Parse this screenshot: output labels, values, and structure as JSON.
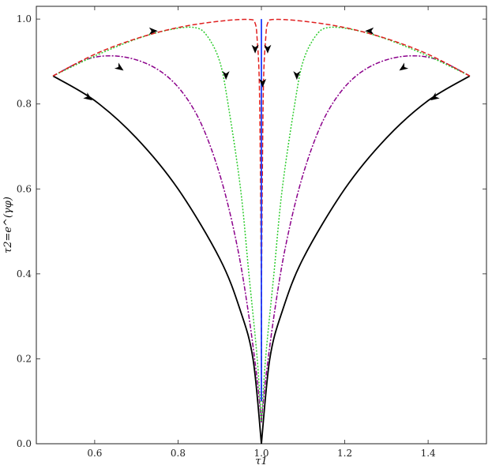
{
  "chart_data": {
    "type": "line",
    "title": "",
    "xlabel": "τ1",
    "ylabel": "τ2=e^(γφ)",
    "xlim": [
      0.46,
      1.54
    ],
    "ylim": [
      0.0,
      1.03
    ],
    "xticks": [
      0.6,
      0.8,
      1.0,
      1.2,
      1.4
    ],
    "yticks": [
      0.0,
      0.2,
      0.4,
      0.6,
      0.8,
      1.0
    ],
    "grid": false,
    "legend": "none",
    "series": [
      {
        "color": "#000000",
        "dash": "solid",
        "points": [
          [
            0.5,
            0.866
          ],
          [
            0.6,
            0.808
          ],
          [
            0.7,
            0.72
          ],
          [
            0.8,
            0.6
          ],
          [
            0.9,
            0.436
          ],
          [
            0.95,
            0.312
          ],
          [
            0.98,
            0.199
          ],
          [
            1.0,
            0.0
          ]
        ]
      },
      {
        "color": "#000000",
        "dash": "solid",
        "points": [
          [
            1.5,
            0.866
          ],
          [
            1.4,
            0.808
          ],
          [
            1.3,
            0.72
          ],
          [
            1.2,
            0.6
          ],
          [
            1.1,
            0.436
          ],
          [
            1.05,
            0.312
          ],
          [
            1.02,
            0.199
          ],
          [
            1.0,
            0.0
          ]
        ]
      },
      {
        "color": "#8b008b",
        "dash": "dashdot",
        "points": [
          [
            0.5,
            0.866
          ],
          [
            0.58,
            0.905
          ],
          [
            0.65,
            0.913
          ],
          [
            0.72,
            0.897
          ],
          [
            0.78,
            0.86
          ],
          [
            0.83,
            0.8
          ],
          [
            0.87,
            0.72
          ],
          [
            0.91,
            0.6
          ],
          [
            0.945,
            0.45
          ],
          [
            0.97,
            0.3
          ],
          [
            0.99,
            0.15
          ],
          [
            1.0,
            0.05
          ]
        ]
      },
      {
        "color": "#8b008b",
        "dash": "dashdot",
        "points": [
          [
            1.5,
            0.866
          ],
          [
            1.42,
            0.905
          ],
          [
            1.35,
            0.913
          ],
          [
            1.28,
            0.897
          ],
          [
            1.22,
            0.86
          ],
          [
            1.17,
            0.8
          ],
          [
            1.13,
            0.72
          ],
          [
            1.09,
            0.6
          ],
          [
            1.055,
            0.45
          ],
          [
            1.03,
            0.3
          ],
          [
            1.01,
            0.15
          ],
          [
            1.0,
            0.05
          ]
        ]
      },
      {
        "color": "#2ecc2e",
        "dash": "dotted",
        "points": [
          [
            0.5,
            0.866
          ],
          [
            0.6,
            0.913
          ],
          [
            0.7,
            0.953
          ],
          [
            0.78,
            0.975
          ],
          [
            0.84,
            0.98
          ],
          [
            0.87,
            0.96
          ],
          [
            0.9,
            0.9
          ],
          [
            0.92,
            0.8
          ],
          [
            0.95,
            0.6
          ],
          [
            0.97,
            0.4
          ],
          [
            0.99,
            0.2
          ],
          [
            1.0,
            0.05
          ]
        ]
      },
      {
        "color": "#2ecc2e",
        "dash": "dotted",
        "points": [
          [
            1.5,
            0.866
          ],
          [
            1.4,
            0.913
          ],
          [
            1.3,
            0.953
          ],
          [
            1.22,
            0.975
          ],
          [
            1.16,
            0.98
          ],
          [
            1.13,
            0.96
          ],
          [
            1.1,
            0.9
          ],
          [
            1.08,
            0.8
          ],
          [
            1.05,
            0.6
          ],
          [
            1.03,
            0.4
          ],
          [
            1.01,
            0.2
          ],
          [
            1.0,
            0.05
          ]
        ]
      },
      {
        "color": "#e02020",
        "dash": "dashed",
        "points": [
          [
            0.5,
            0.866
          ],
          [
            0.6,
            0.917
          ],
          [
            0.7,
            0.954
          ],
          [
            0.8,
            0.98
          ],
          [
            0.9,
            0.995
          ],
          [
            0.97,
            0.999
          ],
          [
            0.985,
            0.99
          ],
          [
            0.99,
            0.95
          ],
          [
            0.995,
            0.85
          ],
          [
            0.998,
            0.6
          ],
          [
            1.0,
            0.3
          ],
          [
            1.0,
            0.1
          ]
        ]
      },
      {
        "color": "#e02020",
        "dash": "dashed",
        "points": [
          [
            1.5,
            0.866
          ],
          [
            1.4,
            0.917
          ],
          [
            1.3,
            0.954
          ],
          [
            1.2,
            0.98
          ],
          [
            1.1,
            0.995
          ],
          [
            1.03,
            0.999
          ],
          [
            1.015,
            0.99
          ],
          [
            1.01,
            0.95
          ],
          [
            1.005,
            0.85
          ],
          [
            1.002,
            0.6
          ],
          [
            1.0,
            0.3
          ],
          [
            1.0,
            0.1
          ]
        ]
      },
      {
        "color": "#1a3cff",
        "dash": "solid",
        "points": [
          [
            1.0,
            1.0
          ],
          [
            1.0,
            0.1
          ]
        ]
      }
    ],
    "arrows": [
      {
        "x": 0.585,
        "y": 0.815,
        "dir": "down-right"
      },
      {
        "x": 0.74,
        "y": 0.972,
        "dir": "right"
      },
      {
        "x": 0.66,
        "y": 0.885,
        "dir": "down-right"
      },
      {
        "x": 0.915,
        "y": 0.868,
        "dir": "down"
      },
      {
        "x": 0.985,
        "y": 0.93,
        "dir": "down"
      },
      {
        "x": 1.415,
        "y": 0.815,
        "dir": "down-left"
      },
      {
        "x": 1.26,
        "y": 0.972,
        "dir": "left"
      },
      {
        "x": 1.34,
        "y": 0.885,
        "dir": "down-left"
      },
      {
        "x": 1.085,
        "y": 0.868,
        "dir": "down"
      },
      {
        "x": 1.015,
        "y": 0.93,
        "dir": "down"
      },
      {
        "x": 1.003,
        "y": 0.85,
        "dir": "down"
      }
    ]
  }
}
